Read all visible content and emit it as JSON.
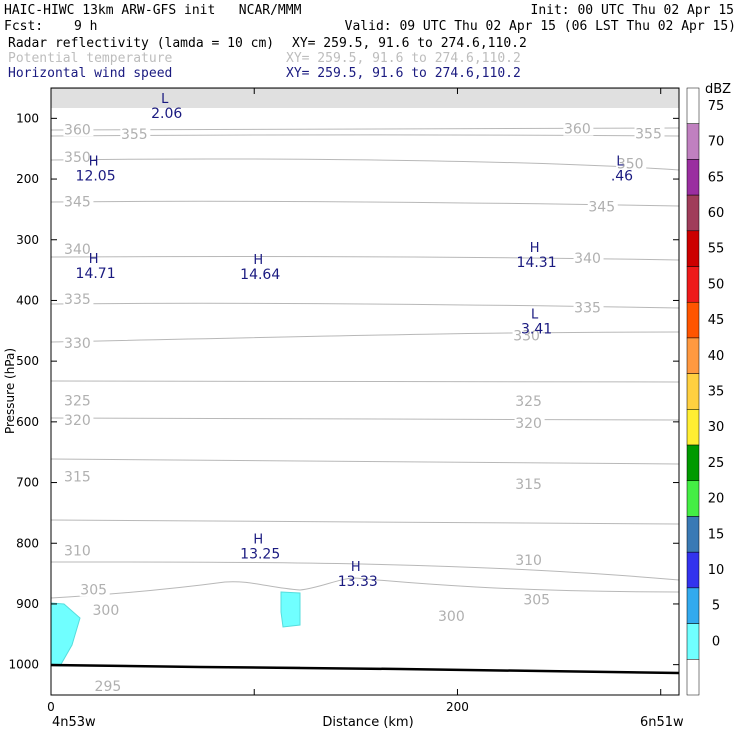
{
  "header": {
    "title_left": "HAIC-HIWC 13km ARW-GFS init   NCAR/MMM",
    "init": "Init: 00 UTC Thu 02 Apr 15",
    "fcst_label": "Fcst:",
    "fcst_value": "9 h",
    "valid": "Valid: 09 UTC Thu 02 Apr 15 (06 LST Thu 02 Apr 15)",
    "fields": [
      {
        "name": "Radar reflectivity (lamda = 10 cm)",
        "xy": "XY= 259.5, 91.6 to 274.6,110.2"
      },
      {
        "name": "Potential temperature",
        "xy": "XY= 259.5, 91.6 to 274.6,110.2"
      },
      {
        "name": "Horizontal wind speed",
        "xy": "XY= 259.5, 91.6 to 274.6,110.2"
      }
    ]
  },
  "chart_data": {
    "type": "heatmap",
    "xlabel": "Distance (km)",
    "ylabel": "Pressure (hPa)",
    "x_ticks": [
      0,
      100,
      200,
      300
    ],
    "x_tick_labels": [
      "0",
      "",
      "200",
      ""
    ],
    "xlim": [
      0,
      309
    ],
    "y_ticks": [
      100,
      200,
      300,
      400,
      500,
      600,
      700,
      800,
      900,
      1000
    ],
    "ylim": [
      1050,
      50
    ],
    "x_end_labels": {
      "left": "4n53w",
      "right": "6n51w"
    },
    "theta_contours": [
      {
        "value": 360,
        "labels": [
          {
            "x": 13,
            "p": 118
          },
          {
            "x": 259,
            "p": 117
          }
        ]
      },
      {
        "value": 355,
        "labels": [
          {
            "x": 41,
            "p": 126
          },
          {
            "x": 294,
            "p": 125
          }
        ]
      },
      {
        "value": 350,
        "labels": [
          {
            "x": 13,
            "p": 164
          },
          {
            "x": 285,
            "p": 174
          }
        ]
      },
      {
        "value": 345,
        "labels": [
          {
            "x": 13,
            "p": 237
          },
          {
            "x": 271,
            "p": 245
          }
        ]
      },
      {
        "value": 340,
        "labels": [
          {
            "x": 13,
            "p": 315
          },
          {
            "x": 264,
            "p": 330
          }
        ]
      },
      {
        "value": 335,
        "labels": [
          {
            "x": 13,
            "p": 398
          },
          {
            "x": 264,
            "p": 412
          }
        ]
      },
      {
        "value": 330,
        "labels": [
          {
            "x": 13,
            "p": 470
          },
          {
            "x": 234,
            "p": 458
          }
        ]
      },
      {
        "value": 325,
        "labels": [
          {
            "x": 13,
            "p": 565
          },
          {
            "x": 235,
            "p": 566
          }
        ]
      },
      {
        "value": 320,
        "labels": [
          {
            "x": 13,
            "p": 597
          },
          {
            "x": 235,
            "p": 602
          }
        ]
      },
      {
        "value": 315,
        "labels": [
          {
            "x": 13,
            "p": 690
          },
          {
            "x": 235,
            "p": 702
          }
        ]
      },
      {
        "value": 310,
        "labels": [
          {
            "x": 13,
            "p": 812
          },
          {
            "x": 235,
            "p": 828
          }
        ]
      },
      {
        "value": 305,
        "labels": [
          {
            "x": 21,
            "p": 876
          },
          {
            "x": 239,
            "p": 893
          }
        ]
      },
      {
        "value": 300,
        "labels": [
          {
            "x": 27,
            "p": 910
          },
          {
            "x": 197,
            "p": 920
          }
        ]
      },
      {
        "value": 295,
        "labels": [
          {
            "x": 28,
            "p": 1035
          }
        ]
      }
    ],
    "wind_extrema": [
      {
        "type": "L",
        "value": "2.06",
        "x": 53,
        "p": 75
      },
      {
        "type": "H",
        "value": "12.05",
        "x": 18,
        "p": 178
      },
      {
        "type": "L",
        "value": ".46",
        "x": 277,
        "p": 178
      },
      {
        "type": "H",
        "value": "14.71",
        "x": 18,
        "p": 338
      },
      {
        "type": "H",
        "value": "14.64",
        "x": 99,
        "p": 340
      },
      {
        "type": "H",
        "value": "14.31",
        "x": 235,
        "p": 320
      },
      {
        "type": "L",
        "value": "3.41",
        "x": 235,
        "p": 430
      },
      {
        "type": "H",
        "value": "13.25",
        "x": 99,
        "p": 800
      },
      {
        "type": "H",
        "value": "13.33",
        "x": 147,
        "p": 846
      }
    ],
    "colorbar": {
      "title": "dBZ",
      "levels": [
        75,
        70,
        65,
        60,
        55,
        50,
        45,
        40,
        35,
        30,
        25,
        20,
        15,
        10,
        5,
        0
      ],
      "colors": [
        "#ffffff",
        "#c080c0",
        "#9a2ea0",
        "#a03c5a",
        "#cc0000",
        "#ee1a1a",
        "#ff5500",
        "#ff9940",
        "#ffd040",
        "#ffee33",
        "#009a00",
        "#44ee44",
        "#3a7ab5",
        "#3333ee",
        "#33aaee",
        "#70ffff",
        "#ffffff"
      ]
    }
  }
}
